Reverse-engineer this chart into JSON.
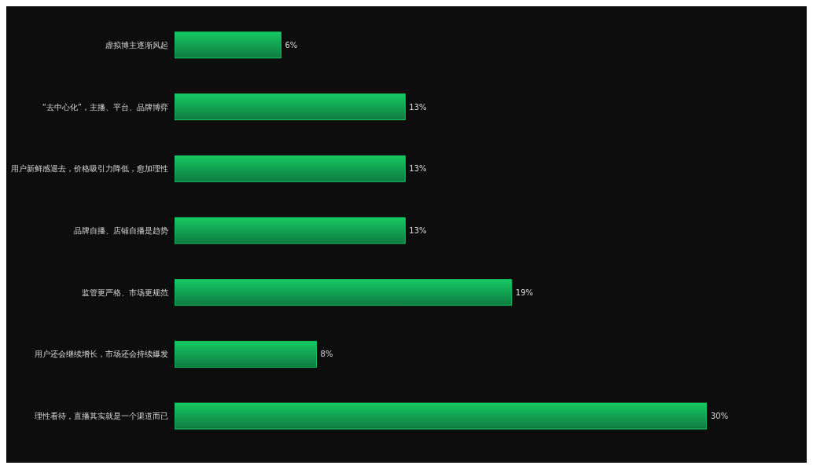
{
  "chart_data": {
    "type": "bar",
    "orientation": "horizontal",
    "categories": [
      "虚拟博主逐渐风起",
      "“去中心化”，主播、平台、品牌博弈",
      "用户新鲜感退去，价格吸引力降低，愈加理性",
      "品牌自播、店铺自播是趋势",
      "监管更严格、市场更规范",
      "用户还会继续增长，市场还会持续爆发",
      "理性看待，直播其实就是一个渠道而已"
    ],
    "values": [
      6,
      13,
      13,
      13,
      19,
      8,
      30
    ],
    "value_labels": [
      "6%",
      "13%",
      "13%",
      "13%",
      "19%",
      "8%",
      "30%"
    ],
    "color": "#16c964",
    "grid": false,
    "legend": false
  }
}
